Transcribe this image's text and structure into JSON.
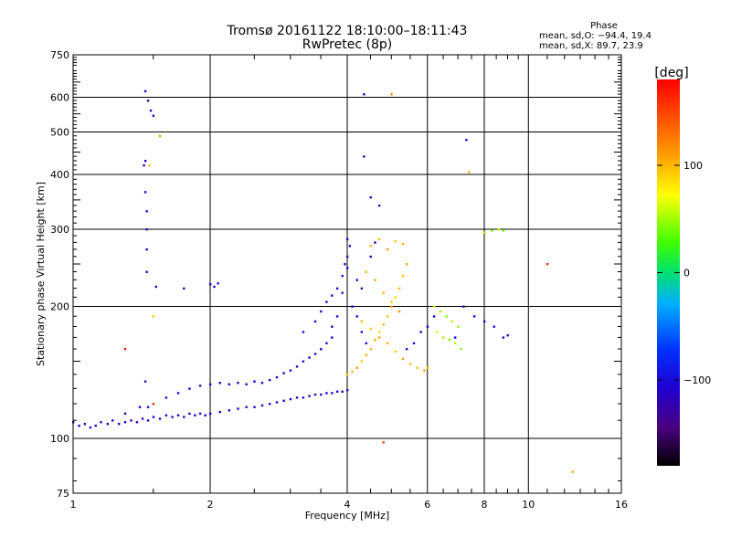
{
  "title": {
    "line1": "Tromsø 20161122 18:10:00–18:11:43",
    "line2": "RwPretec (8p)"
  },
  "stats": {
    "header": "Phase",
    "o_mode": "mean, sd,O: −94.4, 19.4",
    "x_mode": "mean, sd,X: 89.7, 23.9"
  },
  "colorbar": {
    "unit_label": "[deg]",
    "ticks": [
      {
        "value": 100,
        "label": "100"
      },
      {
        "value": 0,
        "label": "0"
      },
      {
        "value": -100,
        "label": "−100"
      }
    ],
    "range": [
      -180,
      180
    ],
    "colormap": "rainbow-with-black-low"
  },
  "chart_data": {
    "type": "scatter",
    "title": "Tromsø 20161122 18:10:00–18:11:43",
    "subtitle": "RwPretec (8p)",
    "xlabel": "Frequency [MHz]",
    "ylabel": "Stationary phase Virtual Height [km]",
    "x_scale": "log",
    "y_scale": "log",
    "xlim": [
      1,
      16
    ],
    "ylim": [
      75,
      750
    ],
    "x_ticks": [
      {
        "value": 1,
        "label": "1"
      },
      {
        "value": 2,
        "label": "2"
      },
      {
        "value": 4,
        "label": "4"
      },
      {
        "value": 6,
        "label": "6"
      },
      {
        "value": 8,
        "label": "8"
      },
      {
        "value": 10,
        "label": "10"
      },
      {
        "value": 16,
        "label": "16"
      }
    ],
    "x_minor_ticks": [
      1.5,
      2.5,
      3,
      3.5,
      4.5,
      5,
      5.5,
      6.5,
      7,
      7.5,
      8.5,
      9,
      9.5,
      11,
      12,
      13,
      14,
      15
    ],
    "x_gridlines": [
      2,
      4,
      6,
      8,
      10
    ],
    "y_ticks": [
      {
        "value": 75,
        "label": "75"
      },
      {
        "value": 100,
        "label": "100"
      },
      {
        "value": 200,
        "label": "200"
      },
      {
        "value": 300,
        "label": "300"
      },
      {
        "value": 400,
        "label": "400"
      },
      {
        "value": 500,
        "label": "500"
      },
      {
        "value": 600,
        "label": "600"
      },
      {
        "value": 750,
        "label": "750"
      }
    ],
    "y_gridlines": [
      100,
      200,
      300,
      400,
      500,
      600
    ],
    "grid": true,
    "color_encodes": "phase [deg]",
    "series": [
      {
        "mode": "O",
        "points": [
          [
            1.0,
            109,
            -110
          ],
          [
            1.03,
            107,
            -105
          ],
          [
            1.06,
            108,
            -120
          ],
          [
            1.09,
            106,
            -100
          ],
          [
            1.12,
            107,
            -110
          ],
          [
            1.15,
            109,
            -95
          ],
          [
            1.19,
            108,
            -115
          ],
          [
            1.22,
            110,
            -105
          ],
          [
            1.26,
            108,
            -120
          ],
          [
            1.3,
            109,
            -100
          ],
          [
            1.34,
            110,
            -110
          ],
          [
            1.38,
            109,
            -125
          ],
          [
            1.42,
            111,
            -100
          ],
          [
            1.46,
            110,
            -115
          ],
          [
            1.5,
            112,
            -105
          ],
          [
            1.55,
            111,
            -120
          ],
          [
            1.6,
            113,
            -110
          ],
          [
            1.65,
            112,
            -100
          ],
          [
            1.7,
            113,
            -115
          ],
          [
            1.75,
            112,
            -105
          ],
          [
            1.8,
            114,
            -120
          ],
          [
            1.85,
            113,
            -110
          ],
          [
            1.9,
            114,
            -100
          ],
          [
            1.95,
            113,
            -115
          ],
          [
            2.0,
            114,
            -105
          ],
          [
            2.1,
            115,
            -110
          ],
          [
            2.2,
            116,
            -120
          ],
          [
            2.3,
            117,
            -100
          ],
          [
            2.4,
            118,
            -115
          ],
          [
            2.5,
            118,
            -105
          ],
          [
            2.6,
            119,
            -110
          ],
          [
            2.7,
            120,
            -95
          ],
          [
            2.8,
            121,
            -115
          ],
          [
            2.9,
            122,
            -105
          ],
          [
            3.0,
            123,
            -110
          ],
          [
            3.1,
            124,
            -120
          ],
          [
            3.2,
            124,
            -100
          ],
          [
            3.3,
            125,
            -110
          ],
          [
            3.4,
            126,
            -105
          ],
          [
            3.5,
            126,
            -115
          ],
          [
            3.6,
            127,
            -100
          ],
          [
            3.7,
            127,
            -110
          ],
          [
            3.8,
            128,
            -105
          ],
          [
            3.9,
            128,
            -115
          ],
          [
            4.0,
            129,
            -100
          ],
          [
            1.3,
            114,
            -110
          ],
          [
            1.4,
            118,
            -105
          ],
          [
            1.5,
            120,
            -115
          ],
          [
            1.6,
            124,
            -100
          ],
          [
            1.7,
            127,
            -110
          ],
          [
            1.8,
            130,
            -105
          ],
          [
            1.9,
            132,
            -115
          ],
          [
            2.0,
            133,
            -100
          ],
          [
            2.1,
            134,
            -110
          ],
          [
            2.2,
            133,
            -105
          ],
          [
            2.3,
            134,
            -120
          ],
          [
            2.4,
            133,
            -100
          ],
          [
            2.5,
            135,
            -110
          ],
          [
            2.6,
            134,
            -105
          ],
          [
            2.7,
            136,
            -115
          ],
          [
            2.8,
            138,
            -100
          ],
          [
            2.9,
            141,
            -110
          ],
          [
            3.0,
            143,
            -105
          ],
          [
            3.1,
            146,
            -115
          ],
          [
            3.2,
            150,
            -100
          ],
          [
            3.3,
            153,
            -110
          ],
          [
            3.4,
            156,
            -105
          ],
          [
            3.5,
            160,
            -115
          ],
          [
            3.6,
            165,
            -100
          ],
          [
            3.7,
            170,
            -110
          ],
          [
            3.2,
            175,
            -105
          ],
          [
            3.4,
            185,
            -115
          ],
          [
            3.5,
            195,
            -100
          ],
          [
            3.6,
            205,
            -110
          ],
          [
            3.7,
            212,
            -105
          ],
          [
            3.8,
            220,
            -115
          ],
          [
            3.9,
            235,
            -100
          ],
          [
            4.0,
            245,
            -110
          ],
          [
            4.0,
            260,
            -105
          ],
          [
            4.05,
            275,
            -115
          ],
          [
            4.0,
            285,
            -100
          ],
          [
            3.95,
            250,
            -120
          ],
          [
            3.9,
            215,
            -95
          ],
          [
            3.8,
            190,
            -110
          ],
          [
            3.7,
            180,
            -105
          ],
          [
            4.1,
            200,
            -110
          ],
          [
            4.2,
            190,
            -105
          ],
          [
            4.3,
            175,
            -115
          ],
          [
            4.4,
            165,
            -100
          ],
          [
            4.5,
            160,
            -110
          ],
          [
            4.2,
            230,
            -100
          ],
          [
            4.3,
            220,
            -115
          ],
          [
            4.4,
            240,
            -105
          ],
          [
            4.5,
            260,
            -110
          ],
          [
            4.6,
            280,
            -120
          ],
          [
            5.4,
            160,
            -110
          ],
          [
            5.6,
            165,
            -105
          ],
          [
            5.8,
            175,
            -115
          ],
          [
            6.0,
            180,
            -100
          ],
          [
            6.2,
            190,
            -110
          ],
          [
            6.9,
            170,
            -105
          ],
          [
            7.2,
            200,
            -115
          ],
          [
            7.6,
            190,
            -100
          ],
          [
            8.0,
            185,
            -110
          ],
          [
            8.4,
            180,
            -105
          ],
          [
            8.8,
            170,
            -100
          ],
          [
            9.0,
            172,
            -115
          ],
          [
            1.44,
            620,
            -110
          ],
          [
            1.46,
            590,
            -115
          ],
          [
            1.48,
            560,
            -105
          ],
          [
            1.5,
            545,
            -100
          ],
          [
            1.44,
            430,
            -110
          ],
          [
            1.43,
            420,
            -115
          ],
          [
            1.44,
            365,
            -105
          ],
          [
            1.45,
            330,
            -100
          ],
          [
            1.45,
            300,
            -110
          ],
          [
            1.45,
            270,
            -105
          ],
          [
            1.45,
            240,
            -115
          ],
          [
            1.52,
            222,
            -100
          ],
          [
            1.75,
            220,
            -110
          ],
          [
            2.0,
            225,
            -105
          ],
          [
            2.04,
            222,
            -115
          ],
          [
            2.08,
            226,
            -100
          ],
          [
            4.35,
            610,
            -110
          ],
          [
            4.35,
            440,
            -105
          ],
          [
            4.5,
            355,
            -115
          ],
          [
            4.7,
            340,
            -100
          ],
          [
            7.3,
            480,
            -110
          ],
          [
            8.0,
            295,
            -105
          ],
          [
            1.44,
            135,
            -110
          ],
          [
            1.46,
            118,
            -105
          ]
        ]
      },
      {
        "mode": "X",
        "points": [
          [
            4.0,
            140,
            95
          ],
          [
            4.1,
            142,
            100
          ],
          [
            4.2,
            145,
            110
          ],
          [
            4.3,
            150,
            90
          ],
          [
            4.4,
            155,
            100
          ],
          [
            4.5,
            160,
            95
          ],
          [
            4.6,
            168,
            105
          ],
          [
            4.7,
            175,
            85
          ],
          [
            4.8,
            182,
            100
          ],
          [
            4.9,
            190,
            95
          ],
          [
            5.0,
            200,
            110
          ],
          [
            5.1,
            210,
            90
          ],
          [
            5.2,
            220,
            100
          ],
          [
            5.3,
            235,
            95
          ],
          [
            5.4,
            250,
            105
          ],
          [
            4.5,
            275,
            100
          ],
          [
            4.7,
            285,
            95
          ],
          [
            4.9,
            270,
            110
          ],
          [
            5.1,
            282,
            90
          ],
          [
            5.3,
            278,
            100
          ],
          [
            4.4,
            240,
            95
          ],
          [
            4.6,
            230,
            105
          ],
          [
            4.8,
            215,
            100
          ],
          [
            5.0,
            205,
            95
          ],
          [
            5.2,
            195,
            110
          ],
          [
            4.3,
            185,
            100
          ],
          [
            4.5,
            178,
            95
          ],
          [
            4.7,
            170,
            105
          ],
          [
            4.9,
            165,
            100
          ],
          [
            5.1,
            158,
            95
          ],
          [
            5.3,
            152,
            110
          ],
          [
            5.5,
            148,
            100
          ],
          [
            5.7,
            145,
            95
          ],
          [
            5.9,
            143,
            105
          ],
          [
            6.0,
            145,
            100
          ],
          [
            6.2,
            200,
            60
          ],
          [
            6.4,
            195,
            50
          ],
          [
            6.6,
            190,
            40
          ],
          [
            6.8,
            185,
            55
          ],
          [
            7.0,
            180,
            45
          ],
          [
            6.3,
            175,
            60
          ],
          [
            6.5,
            170,
            50
          ],
          [
            6.7,
            168,
            40
          ],
          [
            6.9,
            165,
            55
          ],
          [
            7.1,
            160,
            45
          ],
          [
            8.0,
            295,
            50
          ],
          [
            8.3,
            298,
            40
          ],
          [
            8.6,
            300,
            55
          ],
          [
            8.8,
            298,
            45
          ],
          [
            4.8,
            98,
            150
          ],
          [
            11.0,
            250,
            160
          ],
          [
            12.5,
            84,
            105
          ],
          [
            1.55,
            490,
            110
          ],
          [
            1.5,
            190,
            95
          ],
          [
            5.0,
            610,
            115
          ],
          [
            1.47,
            420,
            100
          ],
          [
            7.4,
            405,
            105
          ],
          [
            1.3,
            160,
            170
          ],
          [
            1.5,
            120,
            150
          ]
        ]
      }
    ]
  }
}
